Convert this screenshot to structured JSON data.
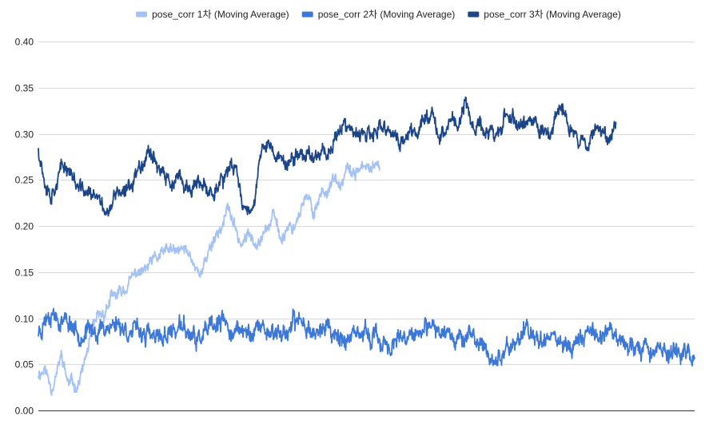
{
  "chart_data": {
    "type": "line",
    "title": "",
    "xlabel": "",
    "ylabel": "",
    "ylim": [
      0,
      0.4
    ],
    "yticks": [
      "0.00",
      "0.05",
      "0.10",
      "0.15",
      "0.20",
      "0.25",
      "0.30",
      "0.35",
      "0.40"
    ],
    "grid": true,
    "legend_position": "top",
    "x_domain": [
      0,
      100
    ],
    "series": [
      {
        "name": "pose_corr 1차 (Moving Average)",
        "color": "#a4c2f4",
        "x_range": [
          0,
          52
        ],
        "anchors": [
          [
            0,
            0.04
          ],
          [
            1,
            0.045
          ],
          [
            2,
            0.025
          ],
          [
            3,
            0.045
          ],
          [
            3.5,
            0.06
          ],
          [
            4.5,
            0.03
          ],
          [
            6,
            0.028
          ],
          [
            7,
            0.05
          ],
          [
            8,
            0.08
          ],
          [
            9,
            0.1
          ],
          [
            10,
            0.105
          ],
          [
            11,
            0.12
          ],
          [
            13,
            0.13
          ],
          [
            14,
            0.14
          ],
          [
            15,
            0.15
          ],
          [
            16,
            0.15
          ],
          [
            18,
            0.165
          ],
          [
            20,
            0.175
          ],
          [
            21,
            0.17
          ],
          [
            22,
            0.175
          ],
          [
            23,
            0.17
          ],
          [
            24,
            0.155
          ],
          [
            25,
            0.15
          ],
          [
            26,
            0.175
          ],
          [
            27,
            0.19
          ],
          [
            28,
            0.2
          ],
          [
            29,
            0.22
          ],
          [
            30,
            0.195
          ],
          [
            31,
            0.18
          ],
          [
            32,
            0.19
          ],
          [
            33,
            0.185
          ],
          [
            34,
            0.19
          ],
          [
            35,
            0.2
          ],
          [
            36,
            0.21
          ],
          [
            37,
            0.185
          ],
          [
            38,
            0.2
          ],
          [
            39,
            0.2
          ],
          [
            40,
            0.22
          ],
          [
            41,
            0.23
          ],
          [
            42,
            0.215
          ],
          [
            43,
            0.235
          ],
          [
            44,
            0.24
          ],
          [
            45,
            0.25
          ],
          [
            46,
            0.24
          ],
          [
            47,
            0.26
          ],
          [
            48,
            0.255
          ],
          [
            49,
            0.265
          ],
          [
            50,
            0.26
          ],
          [
            51,
            0.265
          ],
          [
            52,
            0.26
          ]
        ],
        "noise": 0.008,
        "seed": 11
      },
      {
        "name": "pose_corr 2차 (Moving Average)",
        "color": "#3c78d8",
        "x_range": [
          0,
          100
        ],
        "anchors": [
          [
            0,
            0.085
          ],
          [
            1,
            0.1
          ],
          [
            2,
            0.11
          ],
          [
            3,
            0.1
          ],
          [
            5,
            0.095
          ],
          [
            6,
            0.085
          ],
          [
            8,
            0.085
          ],
          [
            10,
            0.09
          ],
          [
            12,
            0.095
          ],
          [
            14,
            0.085
          ],
          [
            16,
            0.085
          ],
          [
            18,
            0.075
          ],
          [
            20,
            0.085
          ],
          [
            22,
            0.09
          ],
          [
            24,
            0.075
          ],
          [
            26,
            0.085
          ],
          [
            28,
            0.095
          ],
          [
            30,
            0.085
          ],
          [
            32,
            0.085
          ],
          [
            34,
            0.09
          ],
          [
            36,
            0.085
          ],
          [
            38,
            0.085
          ],
          [
            40,
            0.1
          ],
          [
            42,
            0.085
          ],
          [
            44,
            0.09
          ],
          [
            46,
            0.08
          ],
          [
            48,
            0.075
          ],
          [
            50,
            0.085
          ],
          [
            52,
            0.075
          ],
          [
            54,
            0.07
          ],
          [
            56,
            0.075
          ],
          [
            58,
            0.085
          ],
          [
            60,
            0.085
          ],
          [
            62,
            0.09
          ],
          [
            64,
            0.08
          ],
          [
            66,
            0.08
          ],
          [
            68,
            0.065
          ],
          [
            70,
            0.055
          ],
          [
            72,
            0.07
          ],
          [
            74,
            0.085
          ],
          [
            76,
            0.08
          ],
          [
            78,
            0.085
          ],
          [
            80,
            0.07
          ],
          [
            82,
            0.075
          ],
          [
            84,
            0.085
          ],
          [
            86,
            0.085
          ],
          [
            88,
            0.085
          ],
          [
            90,
            0.07
          ],
          [
            92,
            0.07
          ],
          [
            94,
            0.065
          ],
          [
            96,
            0.065
          ],
          [
            98,
            0.065
          ],
          [
            100,
            0.055
          ]
        ],
        "noise": 0.012,
        "seed": 23
      },
      {
        "name": "pose_corr 3차 (Moving Average)",
        "color": "#1c4587",
        "x_range": [
          0,
          88
        ],
        "anchors": [
          [
            0,
            0.285
          ],
          [
            1,
            0.25
          ],
          [
            2,
            0.235
          ],
          [
            3,
            0.255
          ],
          [
            4,
            0.265
          ],
          [
            5,
            0.26
          ],
          [
            6,
            0.24
          ],
          [
            8,
            0.235
          ],
          [
            10,
            0.22
          ],
          [
            11,
            0.215
          ],
          [
            12,
            0.24
          ],
          [
            13,
            0.23
          ],
          [
            15,
            0.26
          ],
          [
            17,
            0.285
          ],
          [
            18,
            0.27
          ],
          [
            19,
            0.255
          ],
          [
            20,
            0.245
          ],
          [
            21,
            0.25
          ],
          [
            22,
            0.245
          ],
          [
            23,
            0.24
          ],
          [
            24,
            0.245
          ],
          [
            26,
            0.235
          ],
          [
            28,
            0.25
          ],
          [
            29,
            0.255
          ],
          [
            30,
            0.265
          ],
          [
            31,
            0.23
          ],
          [
            32,
            0.215
          ],
          [
            33,
            0.235
          ],
          [
            34,
            0.28
          ],
          [
            35,
            0.29
          ],
          [
            36,
            0.275
          ],
          [
            37,
            0.275
          ],
          [
            38,
            0.265
          ],
          [
            40,
            0.28
          ],
          [
            42,
            0.275
          ],
          [
            43,
            0.285
          ],
          [
            44,
            0.28
          ],
          [
            45,
            0.29
          ],
          [
            46,
            0.31
          ],
          [
            47,
            0.305
          ],
          [
            48,
            0.3
          ],
          [
            49,
            0.295
          ],
          [
            50,
            0.3
          ],
          [
            51,
            0.295
          ],
          [
            52,
            0.305
          ],
          [
            53,
            0.305
          ],
          [
            54,
            0.3
          ],
          [
            55,
            0.29
          ],
          [
            56,
            0.295
          ],
          [
            57,
            0.3
          ],
          [
            58,
            0.305
          ],
          [
            59,
            0.32
          ],
          [
            60,
            0.325
          ],
          [
            61,
            0.3
          ],
          [
            62,
            0.3
          ],
          [
            63,
            0.32
          ],
          [
            64,
            0.305
          ],
          [
            65,
            0.335
          ],
          [
            66,
            0.31
          ],
          [
            68,
            0.305
          ],
          [
            70,
            0.3
          ],
          [
            71,
            0.315
          ],
          [
            72,
            0.32
          ],
          [
            73,
            0.31
          ],
          [
            74,
            0.31
          ],
          [
            75,
            0.315
          ],
          [
            76,
            0.305
          ],
          [
            77,
            0.305
          ],
          [
            78,
            0.3
          ],
          [
            79,
            0.32
          ],
          [
            80,
            0.325
          ],
          [
            81,
            0.305
          ],
          [
            82,
            0.3
          ],
          [
            83,
            0.29
          ],
          [
            84,
            0.295
          ],
          [
            85,
            0.305
          ],
          [
            86,
            0.305
          ],
          [
            87,
            0.3
          ],
          [
            88,
            0.31
          ]
        ],
        "noise": 0.01,
        "seed": 37
      }
    ]
  }
}
